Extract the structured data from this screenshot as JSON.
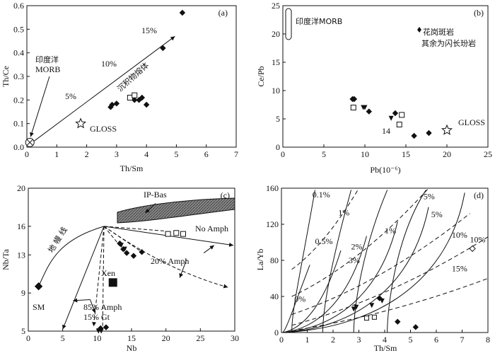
{
  "chart_data": [
    {
      "type": "scatter",
      "panel_label": "(a)",
      "xlabel": "Th/Sm",
      "ylabel": "Th/Ce",
      "xlim": [
        0,
        7
      ],
      "ylim": [
        0,
        0.6
      ],
      "xticks": [
        "0",
        "1",
        "2",
        "3",
        "4",
        "5",
        "6",
        "7"
      ],
      "yticks": [
        "0.0",
        "0.1",
        "0.2",
        "0.3",
        "0.4",
        "0.5",
        "0.6"
      ],
      "diamonds": [
        [
          5.2,
          0.57
        ],
        [
          4.55,
          0.42
        ],
        [
          2.8,
          0.17
        ],
        [
          2.85,
          0.18
        ],
        [
          3.0,
          0.185
        ],
        [
          3.6,
          0.2
        ],
        [
          3.75,
          0.2
        ],
        [
          3.85,
          0.21
        ],
        [
          4.0,
          0.18
        ]
      ],
      "squares": [
        [
          3.45,
          0.21
        ],
        [
          3.6,
          0.22
        ]
      ],
      "mixing_line": [
        [
          0.18,
          0.02
        ],
        [
          4.95,
          0.47
        ]
      ],
      "annotations": {
        "pct_15": "15%",
        "pct_10": "10%",
        "pct_5": "5%",
        "trend": "沉积物熔体",
        "morb": "印度洋\nMORB",
        "gloss": "GLOSS"
      },
      "gloss": [
        1.8,
        0.1
      ],
      "morb": [
        0.1,
        0.02
      ]
    },
    {
      "type": "scatter",
      "panel_label": "(b)",
      "xlabel": "Pb(10⁻⁶)",
      "ylabel": "Ce/Pb",
      "xlim": [
        0,
        25
      ],
      "ylim": [
        0,
        25
      ],
      "xticks": [
        "0",
        "5",
        "10",
        "15",
        "20",
        "25"
      ],
      "yticks": [
        "0",
        "5",
        "10",
        "15",
        "20",
        "25"
      ],
      "legend": [
        "花岗斑岩",
        "其余为闪长玢岩"
      ],
      "morb_label": "印度洋MORB",
      "gloss_label": "GLOSS",
      "label_14": "14",
      "diamonds": [
        [
          8.5,
          8.5
        ],
        [
          8.7,
          8.5
        ],
        [
          10.5,
          6.3
        ],
        [
          13.7,
          6.0
        ],
        [
          16,
          2.0
        ],
        [
          17.8,
          2.5
        ]
      ],
      "triangles": [
        [
          9.8,
          7.0
        ],
        [
          10.0,
          7.0
        ],
        [
          13.2,
          5.1
        ]
      ],
      "squares": [
        [
          8.6,
          7.0
        ],
        [
          14.2,
          4.0
        ],
        [
          14.5,
          5.7
        ]
      ],
      "gloss": [
        20.0,
        3.0
      ]
    },
    {
      "type": "scatter",
      "panel_label": "(c)",
      "xlabel": "Nb",
      "ylabel": "Nb/Ta",
      "xlim": [
        0,
        30
      ],
      "ylim": [
        5,
        20
      ],
      "xticks": [
        "0",
        "5",
        "10",
        "15",
        "20",
        "25",
        "30"
      ],
      "yticks": [
        "5",
        "9",
        "13",
        "16",
        "20"
      ],
      "labels": {
        "ip_bas": "IP-Bas",
        "no_amph": "No Amph",
        "amph20": "20% Amph",
        "amph85": "85% Amph",
        "gt15": "15% Gt",
        "xen": "Xen",
        "sm": "SM",
        "mantle": "地 幔 线"
      },
      "diamonds": [
        [
          1.5,
          9.7
        ],
        [
          13.3,
          14.2
        ],
        [
          13.8,
          13.6
        ],
        [
          14.3,
          13.2
        ],
        [
          15.3,
          12.9
        ],
        [
          16.5,
          13.3
        ],
        [
          10.5,
          5.3
        ],
        [
          11.3,
          5.4
        ]
      ],
      "triangles": [
        [
          13.5,
          14.0
        ],
        [
          14.0,
          13.6
        ],
        [
          10.2,
          5.0
        ],
        [
          10.6,
          5.0
        ]
      ],
      "squares": [
        [
          20.3,
          15.2
        ],
        [
          21.5,
          15.3
        ],
        [
          22.5,
          15.2
        ]
      ],
      "xen": [
        12.3,
        10.1
      ]
    },
    {
      "type": "line",
      "panel_label": "(d)",
      "xlabel": "Th/Sm",
      "ylabel": "La/Yb",
      "xlim": [
        0,
        8
      ],
      "ylim": [
        0,
        160
      ],
      "xticks": [
        "0",
        "1",
        "2",
        "3",
        "4",
        "5",
        "6",
        "7",
        "8"
      ],
      "yticks": [
        "0",
        "40",
        "80",
        "120",
        "160"
      ],
      "pct_labels": [
        "0.1%",
        "1%",
        "0.5%",
        "1%",
        "2%",
        "3%",
        "5%",
        "5%",
        "10%",
        "10%",
        "15%",
        "0%"
      ],
      "diamonds": [
        [
          3.8,
          38
        ],
        [
          4.5,
          12
        ],
        [
          5.2,
          6
        ]
      ],
      "triangles": [
        [
          2.8,
          26
        ],
        [
          2.9,
          28
        ],
        [
          3.5,
          30
        ],
        [
          3.9,
          35
        ]
      ],
      "squares": [
        [
          3.3,
          16
        ],
        [
          3.6,
          17
        ]
      ],
      "open_diamond": [
        7.4,
        93
      ]
    }
  ]
}
